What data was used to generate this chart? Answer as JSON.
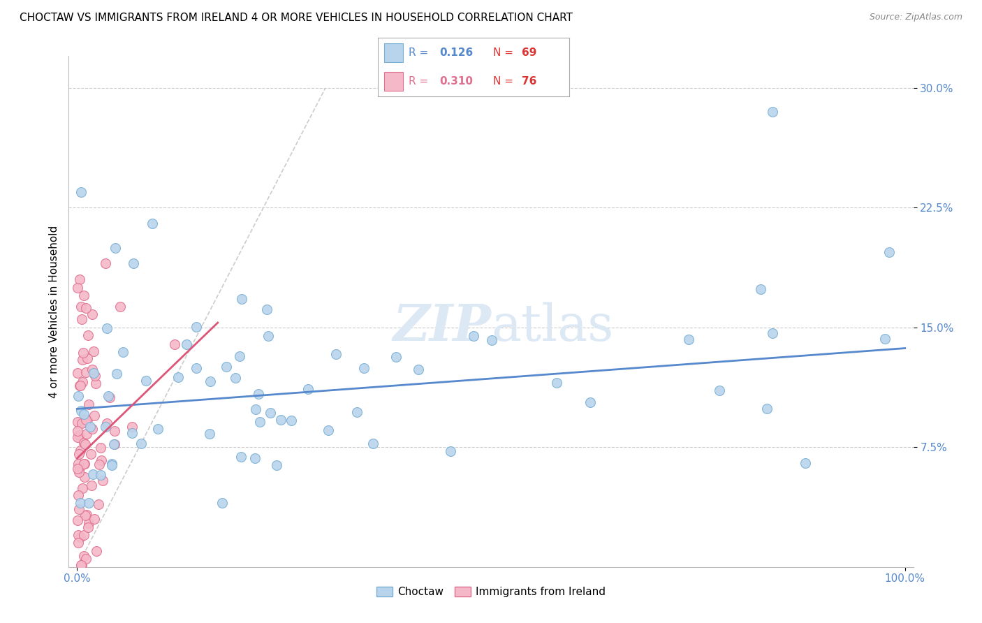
{
  "title": "CHOCTAW VS IMMIGRANTS FROM IRELAND 4 OR MORE VEHICLES IN HOUSEHOLD CORRELATION CHART",
  "source": "Source: ZipAtlas.com",
  "ylabel": "4 or more Vehicles in Household",
  "choctaw_color": "#b8d4ec",
  "choctaw_edge_color": "#7aafd4",
  "ireland_color": "#f5b8c8",
  "ireland_edge_color": "#e07090",
  "choctaw_line_color": "#5588cc",
  "ireland_line_color": "#dd5577",
  "diagonal_line_color": "#cccccc",
  "watermark_color": "#dde8f5",
  "background_color": "#ffffff",
  "grid_color": "#cccccc",
  "tick_label_color": "#5588cc",
  "title_fontsize": 11,
  "axis_label_fontsize": 11,
  "tick_label_fontsize": 11,
  "legend_r1": "R = 0.126",
  "legend_n1": "N = 69",
  "legend_r2": "R = 0.310",
  "legend_n2": "N = 76",
  "r_color": "#5588cc",
  "n_color": "#dd3333"
}
